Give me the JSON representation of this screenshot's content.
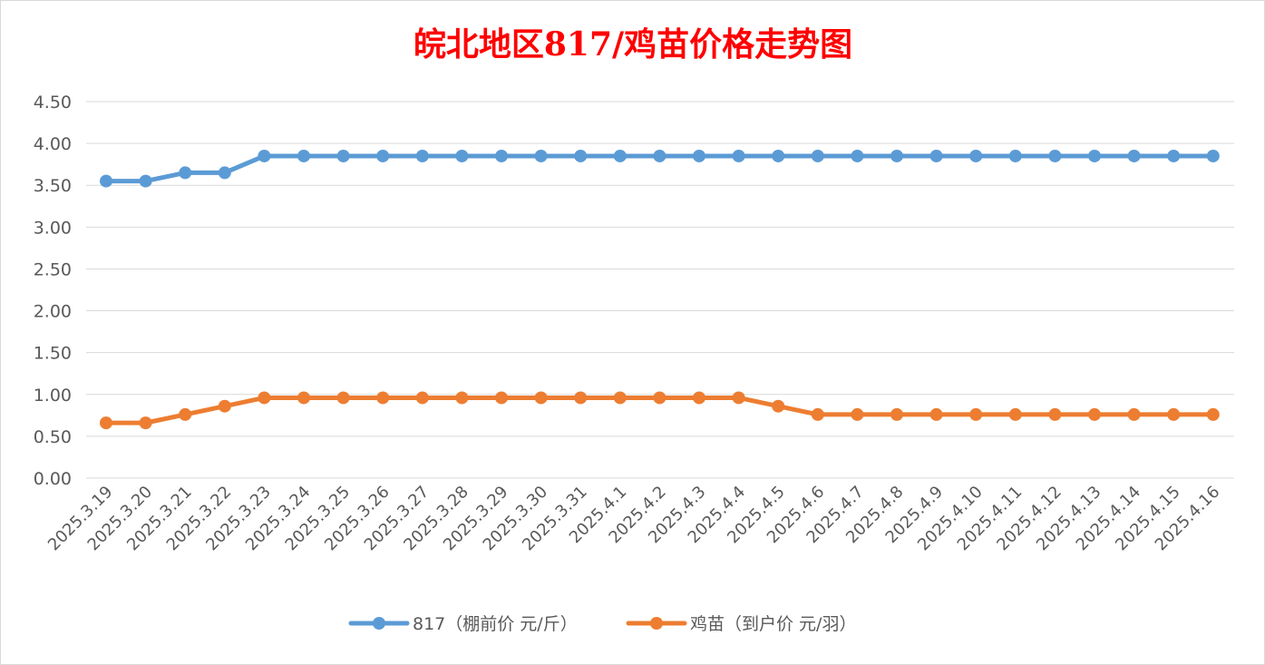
{
  "chart_data": {
    "type": "line",
    "title": "皖北地区817/鸡苗价格走势图",
    "xlabel": "",
    "ylabel": "",
    "ylim": [
      0,
      4.5
    ],
    "y_ticks": [
      "0.00",
      "0.50",
      "1.00",
      "1.50",
      "2.00",
      "2.50",
      "3.00",
      "3.50",
      "4.00",
      "4.50"
    ],
    "grid": true,
    "legend_position": "bottom",
    "categories": [
      "2025.3.19",
      "2025.3.20",
      "2025.3.21",
      "2025.3.22",
      "2025.3.23",
      "2025.3.24",
      "2025.3.25",
      "2025.3.26",
      "2025.3.27",
      "2025.3.28",
      "2025.3.29",
      "2025.3.30",
      "2025.3.31",
      "2025.4.1",
      "2025.4.2",
      "2025.4.3",
      "2025.4.4",
      "2025.4.5",
      "2025.4.6",
      "2025.4.7",
      "2025.4.8",
      "2025.4.9",
      "2025.4.10",
      "2025.4.11",
      "2025.4.12",
      "2025.4.13",
      "2025.4.14",
      "2025.4.15",
      "2025.4.16"
    ],
    "series": [
      {
        "name": "817（棚前价 元/斤）",
        "color": "#5b9bd5",
        "values": [
          3.55,
          3.55,
          3.65,
          3.65,
          3.85,
          3.85,
          3.85,
          3.85,
          3.85,
          3.85,
          3.85,
          3.85,
          3.85,
          3.85,
          3.85,
          3.85,
          3.85,
          3.85,
          3.85,
          3.85,
          3.85,
          3.85,
          3.85,
          3.85,
          3.85,
          3.85,
          3.85,
          3.85,
          3.85
        ]
      },
      {
        "name": "鸡苗（到户价 元/羽）",
        "color": "#ed7d31",
        "values": [
          0.66,
          0.66,
          0.76,
          0.86,
          0.96,
          0.96,
          0.96,
          0.96,
          0.96,
          0.96,
          0.96,
          0.96,
          0.96,
          0.96,
          0.96,
          0.96,
          0.96,
          0.86,
          0.76,
          0.76,
          0.76,
          0.76,
          0.76,
          0.76,
          0.76,
          0.76,
          0.76,
          0.76,
          0.76
        ]
      }
    ]
  }
}
